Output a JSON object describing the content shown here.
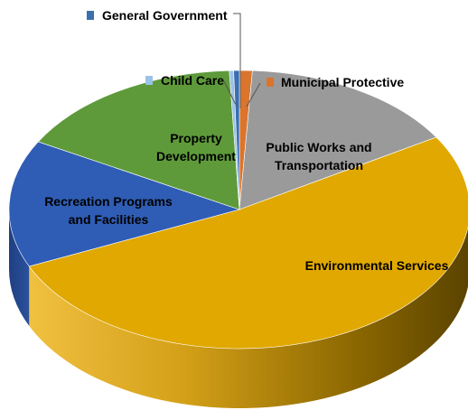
{
  "chart_data": {
    "type": "pie",
    "style": "3d-pie",
    "legend": "none",
    "categories": [
      "Municipal Protective",
      "Public Works and Transportation",
      "Environmental Services",
      "Recreation Programs and Facilities",
      "Property Development",
      "Child Care",
      "General Government"
    ],
    "values": [
      0.9,
      15.4,
      52.0,
      14.8,
      16.2,
      0.3,
      0.4
    ],
    "colors": [
      "#d9752d",
      "#9a9a9a",
      "#e0a800",
      "#2f5db5",
      "#5e9a3a",
      "#9cc2e5",
      "#3a6fb0"
    ],
    "labels": [
      {
        "key": "general",
        "lines": [
          "General Government"
        ]
      },
      {
        "key": "childcare",
        "lines": [
          "Child Care"
        ]
      },
      {
        "key": "municipal",
        "lines": [
          "Municipal Protective"
        ]
      },
      {
        "key": "property",
        "lines": [
          "Property",
          "Development"
        ]
      },
      {
        "key": "publicworks",
        "lines": [
          "Public Works and",
          "Transportation"
        ]
      },
      {
        "key": "recreation",
        "lines": [
          "Recreation Programs",
          "and Facilities"
        ]
      },
      {
        "key": "environmental",
        "lines": [
          "Environmental Services"
        ]
      }
    ]
  }
}
